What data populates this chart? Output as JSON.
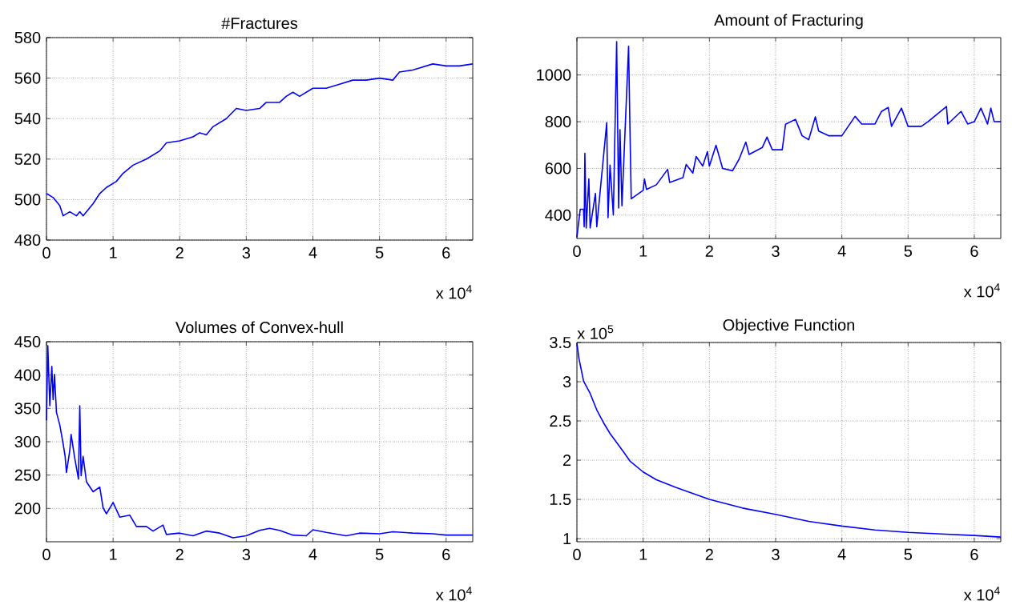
{
  "chart_data": [
    {
      "type": "line",
      "title": "#Fractures",
      "color": "#0000ff",
      "grid": true,
      "xlim": [
        0,
        6.4
      ],
      "ylim": [
        480,
        580
      ],
      "xticks": [
        0,
        1,
        2,
        3,
        4,
        5,
        6
      ],
      "yticks": [
        480,
        500,
        520,
        540,
        560,
        580
      ],
      "annotations": [
        "x 10$^{4}$"
      ],
      "x": [
        0,
        0.1,
        0.2,
        0.25,
        0.35,
        0.45,
        0.5,
        0.55,
        0.7,
        0.8,
        0.9,
        1.05,
        1.15,
        1.3,
        1.5,
        1.7,
        1.8,
        2.0,
        2.2,
        2.3,
        2.4,
        2.5,
        2.7,
        2.85,
        3.0,
        3.2,
        3.3,
        3.5,
        3.6,
        3.7,
        3.8,
        4.0,
        4.2,
        4.4,
        4.6,
        4.8,
        5.0,
        5.2,
        5.3,
        5.5,
        5.6,
        5.8,
        6.0,
        6.2,
        6.4
      ],
      "values": [
        503,
        501,
        497,
        492,
        494,
        492,
        494,
        492,
        498,
        503,
        506,
        509,
        513,
        517,
        520,
        524,
        528,
        529,
        531,
        533,
        532,
        536,
        540,
        545,
        544,
        545,
        548,
        548,
        551,
        553,
        551,
        555,
        555,
        557,
        559,
        559,
        560,
        559,
        563,
        564,
        565,
        567,
        566,
        566,
        567
      ]
    },
    {
      "type": "line",
      "title": "Amount of Fracturing",
      "color": "#0000ff",
      "grid": true,
      "xlim": [
        0,
        6.4
      ],
      "ylim": [
        300,
        1160
      ],
      "xticks": [
        0,
        1,
        2,
        3,
        4,
        5,
        6
      ],
      "yticks": [
        400,
        600,
        800,
        1000
      ],
      "annotations": [
        "x 10$^{4}$"
      ],
      "x": [
        0,
        0.05,
        0.1,
        0.11,
        0.12,
        0.14,
        0.18,
        0.2,
        0.28,
        0.3,
        0.45,
        0.47,
        0.5,
        0.55,
        0.6,
        0.63,
        0.65,
        0.68,
        0.78,
        0.8,
        0.82,
        1.0,
        1.02,
        1.05,
        1.2,
        1.37,
        1.4,
        1.6,
        1.65,
        1.75,
        1.8,
        1.9,
        1.97,
        2.0,
        2.1,
        2.2,
        2.35,
        2.45,
        2.55,
        2.6,
        2.8,
        2.87,
        2.95,
        3.1,
        3.15,
        3.3,
        3.4,
        3.5,
        3.6,
        3.65,
        3.8,
        4.0,
        4.2,
        4.3,
        4.5,
        4.6,
        4.7,
        4.75,
        4.9,
        5.0,
        5.2,
        5.3,
        5.58,
        5.6,
        5.8,
        5.9,
        6.0,
        6.1,
        6.2,
        6.25,
        6.3,
        6.4
      ],
      "values": [
        306,
        425,
        425,
        350,
        665,
        345,
        555,
        345,
        493,
        350,
        796,
        389,
        614,
        400,
        1143,
        430,
        766,
        440,
        1123,
        782,
        470,
        506,
        555,
        510,
        530,
        596,
        540,
        560,
        617,
        580,
        651,
        610,
        672,
        610,
        699,
        600,
        590,
        640,
        713,
        660,
        690,
        734,
        680,
        680,
        789,
        810,
        740,
        723,
        821,
        760,
        740,
        740,
        823,
        790,
        790,
        844,
        861,
        780,
        858,
        780,
        780,
        800,
        865,
        790,
        844,
        790,
        800,
        858,
        790,
        858,
        800,
        800
      ]
    },
    {
      "type": "line",
      "title": "Volumes of Convex-hull",
      "color": "#0000ff",
      "grid": true,
      "xlim": [
        0,
        6.4
      ],
      "ylim": [
        150,
        450
      ],
      "xticks": [
        0,
        1,
        2,
        3,
        4,
        5,
        6
      ],
      "yticks": [
        200,
        250,
        300,
        350,
        400,
        450
      ],
      "annotations": [
        "x 10$^{4}$"
      ],
      "x": [
        0,
        0.02,
        0.05,
        0.08,
        0.1,
        0.12,
        0.15,
        0.2,
        0.25,
        0.28,
        0.3,
        0.35,
        0.37,
        0.42,
        0.48,
        0.5,
        0.52,
        0.55,
        0.6,
        0.7,
        0.8,
        0.85,
        0.9,
        1.0,
        1.1,
        1.25,
        1.35,
        1.5,
        1.6,
        1.75,
        1.8,
        2.0,
        2.2,
        2.4,
        2.6,
        2.8,
        3.0,
        3.2,
        3.35,
        3.5,
        3.7,
        3.9,
        4.0,
        4.2,
        4.5,
        4.7,
        5.0,
        5.2,
        5.5,
        5.8,
        6.0,
        6.4
      ],
      "values": [
        332,
        444,
        354,
        413,
        363,
        401,
        344,
        325,
        297,
        278,
        254,
        287,
        311,
        278,
        244,
        354,
        249,
        278,
        240,
        225,
        232,
        201,
        192,
        209,
        187,
        190,
        173,
        173,
        166,
        175,
        161,
        163,
        159,
        166,
        163,
        156,
        159,
        167,
        170,
        167,
        160,
        159,
        168,
        164,
        159,
        163,
        162,
        165,
        163,
        162,
        160,
        160
      ]
    },
    {
      "type": "line",
      "title": "Objective Function",
      "color": "#0000ff",
      "grid": true,
      "xlim": [
        0,
        6.4
      ],
      "ylim": [
        0.96,
        3.5
      ],
      "xticks": [
        0,
        1,
        2,
        3,
        4,
        5,
        6
      ],
      "yticks": [
        1,
        1.5,
        2,
        2.5,
        3,
        3.5
      ],
      "annotations": [
        "x 10$^{4}$",
        "x 10$^{5}$"
      ],
      "x": [
        0,
        0.03,
        0.1,
        0.2,
        0.3,
        0.4,
        0.5,
        0.7,
        0.8,
        1.0,
        1.2,
        1.5,
        2.0,
        2.5,
        3.0,
        3.5,
        4.0,
        4.5,
        5.0,
        5.5,
        6.0,
        6.4
      ],
      "values": [
        3.49,
        3.3,
        3.01,
        2.85,
        2.64,
        2.48,
        2.34,
        2.11,
        1.99,
        1.85,
        1.75,
        1.65,
        1.5,
        1.39,
        1.31,
        1.22,
        1.16,
        1.11,
        1.08,
        1.06,
        1.04,
        1.02
      ]
    }
  ]
}
